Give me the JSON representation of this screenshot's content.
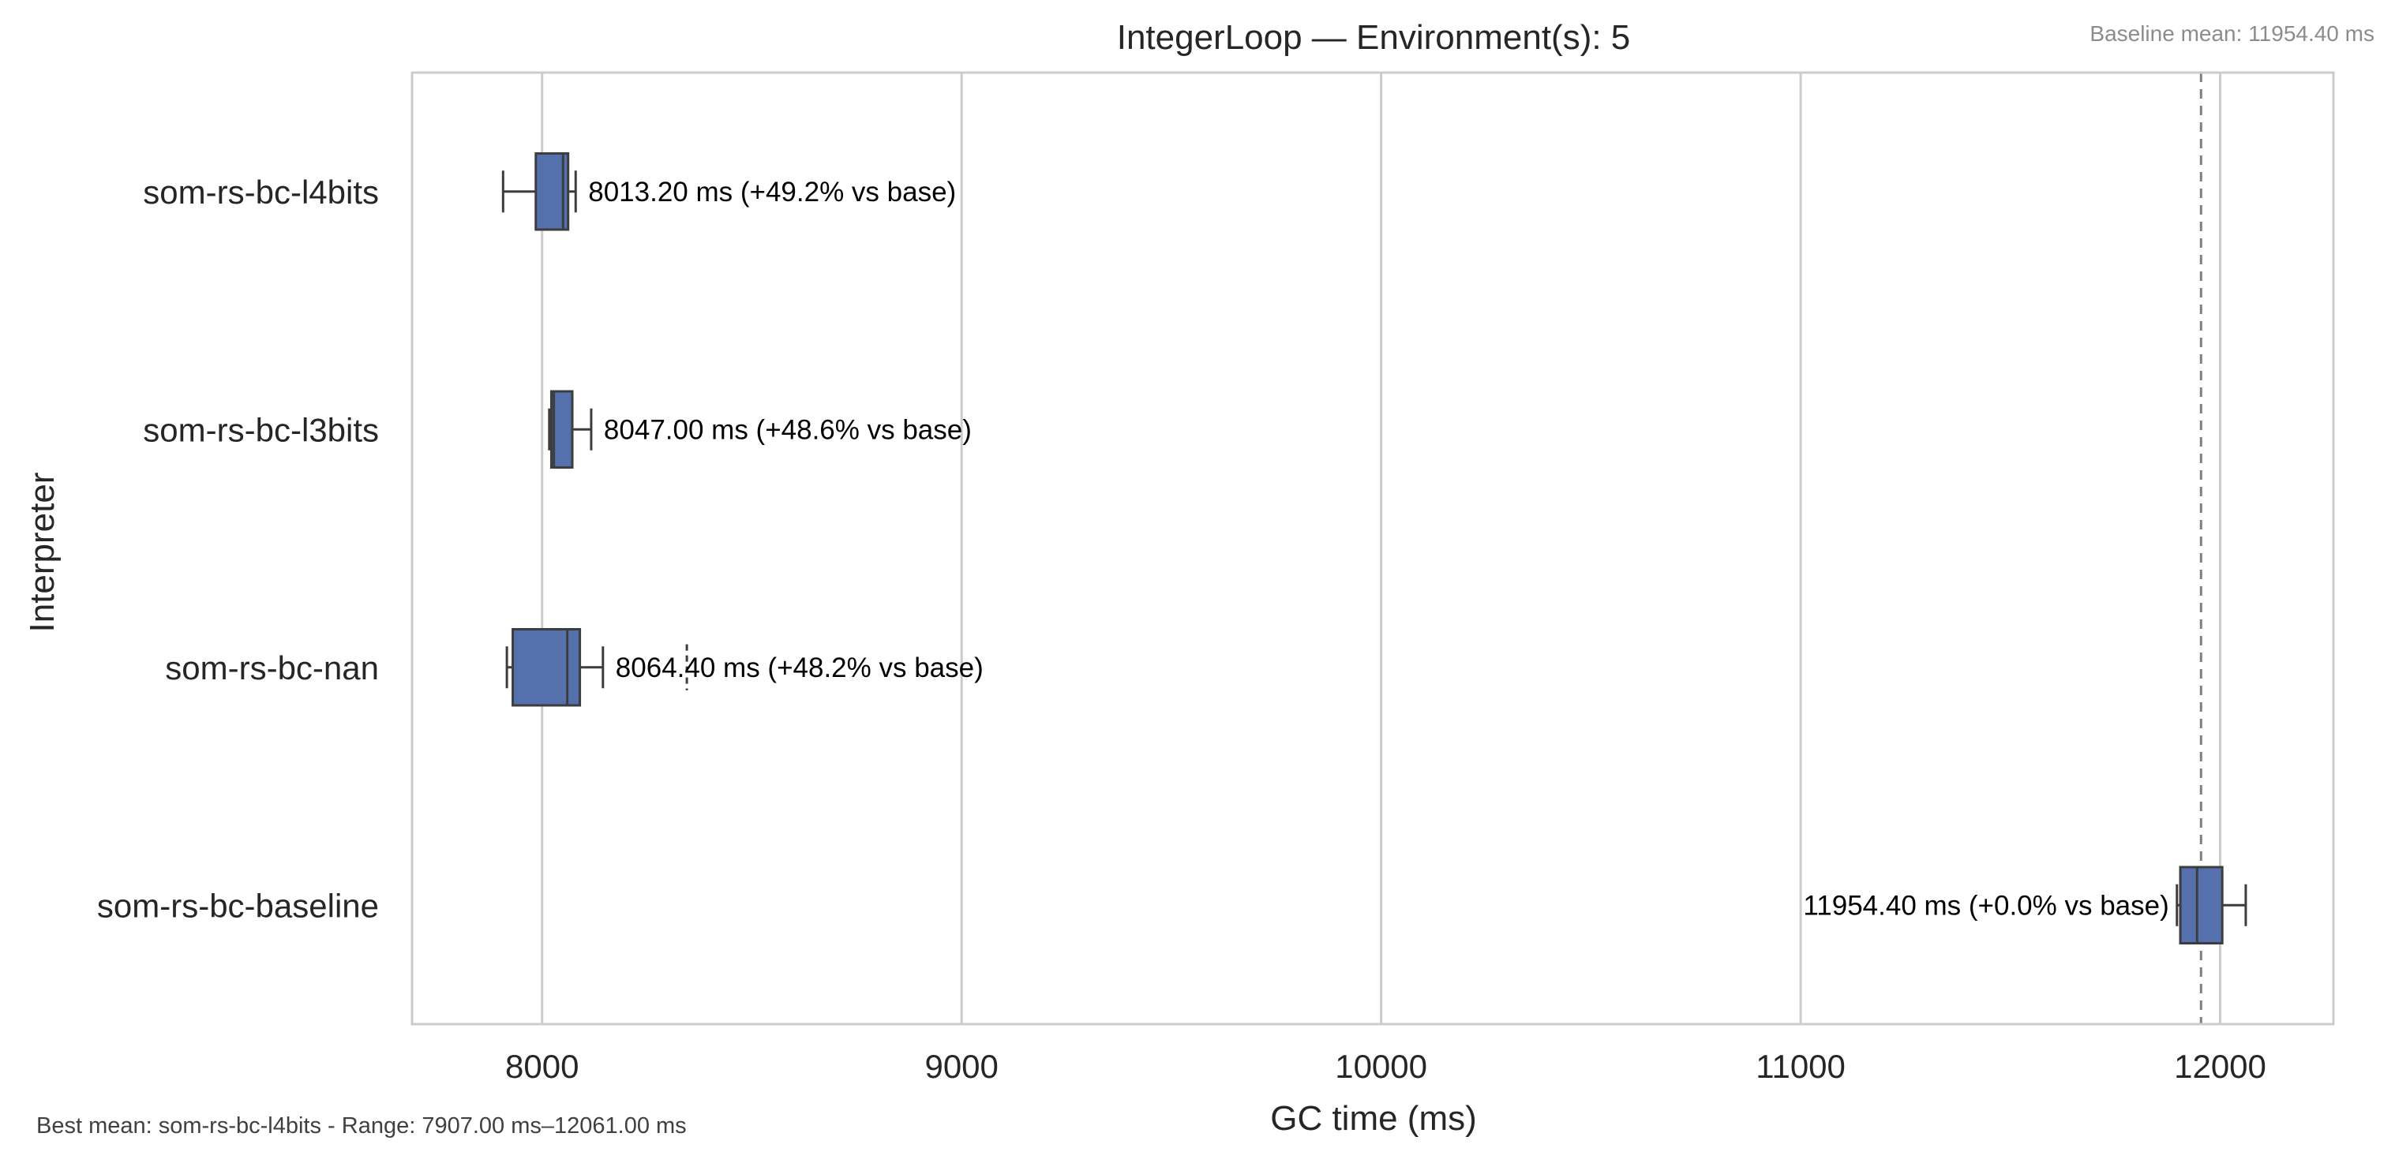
{
  "chart_data": {
    "type": "box",
    "title": "IntegerLoop — Environment(s): 5",
    "xlabel": "GC time (ms)",
    "ylabel": "Interpreter",
    "xlim": [
      7690,
      12270
    ],
    "xticks": [
      8000,
      9000,
      10000,
      11000,
      12000
    ],
    "grid": true,
    "baseline_mean": 11954.4,
    "baseline_label": "Baseline mean: 11954.40 ms",
    "footer": "Best mean: som-rs-bc-l4bits - Range: 7907.00 ms–12061.00 ms",
    "box_color": "#5470ad",
    "categories": [
      "som-rs-bc-l4bits",
      "som-rs-bc-l3bits",
      "som-rs-bc-nan",
      "som-rs-bc-baseline"
    ],
    "series": [
      {
        "category": "som-rs-bc-l4bits",
        "whisker_low": 7907,
        "q1": 7985,
        "median": 8050,
        "q3": 8062,
        "whisker_high": 8080,
        "outliers": [],
        "label": "8013.20 ms  (+49.2% vs base)"
      },
      {
        "category": "som-rs-bc-l3bits",
        "whisker_low": 8017,
        "q1": 8022,
        "median": 8028,
        "q3": 8072,
        "whisker_high": 8117,
        "outliers": [],
        "label": "8047.00 ms  (+48.6% vs base)"
      },
      {
        "category": "som-rs-bc-nan",
        "whisker_low": 7916,
        "q1": 7930,
        "median": 8060,
        "q3": 8090,
        "whisker_high": 8145,
        "outliers": [
          8345
        ],
        "label": "8064.40 ms  (+48.2% vs base)"
      },
      {
        "category": "som-rs-bc-baseline",
        "whisker_low": 11897,
        "q1": 11905,
        "median": 11945,
        "q3": 12005,
        "whisker_high": 12061,
        "outliers": [],
        "label": "11954.40 ms  (+0.0% vs base)"
      }
    ]
  }
}
